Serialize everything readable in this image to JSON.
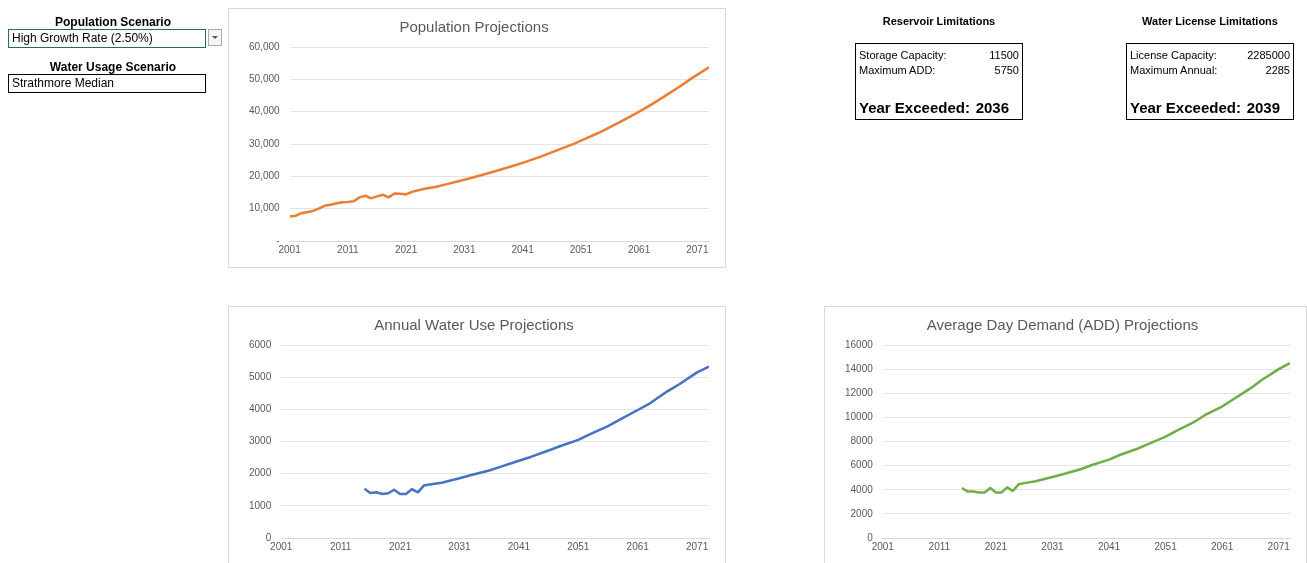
{
  "chart_data": [
    {
      "type": "other",
      "annotations": [
        "Population Scenario",
        "High Growth Rate (2.50%)",
        "Water Usage Scenario",
        "Strathmore Median"
      ]
    },
    {
      "type": "line",
      "title": "Population Projections",
      "grid": "y",
      "legend": false,
      "marker": "none",
      "x": [
        2001,
        2002,
        2003,
        2004,
        2005,
        2006,
        2007,
        2008,
        2009,
        2010,
        2011,
        2012,
        2013,
        2014,
        2015,
        2016,
        2017,
        2018,
        2019,
        2020,
        2021,
        2022,
        2024,
        2026,
        2028,
        2030,
        2032,
        2034,
        2036,
        2038,
        2040,
        2042,
        2044,
        2046,
        2048,
        2050,
        2052,
        2054,
        2056,
        2058,
        2060,
        2062,
        2064,
        2066,
        2068,
        2070,
        2073
      ],
      "series": [
        {
          "color": "#ed7d31",
          "values": [
            7600,
            7800,
            8600,
            8900,
            9300,
            10000,
            10900,
            11200,
            11600,
            12000,
            12100,
            12300,
            13500,
            14000,
            13200,
            13800,
            14300,
            13500,
            14700,
            14600,
            14400,
            15200,
            16100,
            16700,
            17600,
            18500,
            19400,
            20400,
            21400,
            22500,
            23600,
            24800,
            26000,
            27400,
            28800,
            30200,
            31800,
            33400,
            35200,
            37100,
            39000,
            41000,
            43200,
            45500,
            47800,
            50300,
            53700
          ]
        }
      ],
      "xlim": [
        2001,
        2073
      ],
      "xticks": [
        2001,
        2011,
        2021,
        2031,
        2041,
        2051,
        2061,
        2071
      ],
      "ylim": [
        0,
        60000
      ],
      "yticks": [
        {
          "value": 0,
          "label": "-"
        },
        {
          "value": 10000,
          "label": "10,000"
        },
        {
          "value": 20000,
          "label": "20,000"
        },
        {
          "value": 30000,
          "label": "30,000"
        },
        {
          "value": 40000,
          "label": "40,000"
        },
        {
          "value": 50000,
          "label": "50,000"
        },
        {
          "value": 60000,
          "label": "60,000"
        }
      ]
    },
    {
      "type": "other",
      "title": "Reservoir Limitations",
      "annotations": [
        "Storage Capacity:",
        "11500",
        "Maximum ADD:",
        "5750",
        "Year Exceeded:",
        "2036"
      ]
    },
    {
      "type": "other",
      "title": "Water License Limitations",
      "annotations": [
        "License Capacity:",
        "2285000",
        "Maximum Annual:",
        "2285",
        "Year Exceeded:",
        "2039"
      ]
    },
    {
      "type": "line",
      "title": "Annual Water Use Projections",
      "grid": "y",
      "legend": false,
      "marker": "none",
      "x": [
        2015,
        2016,
        2017,
        2018,
        2019,
        2020,
        2021,
        2022,
        2023,
        2024,
        2025,
        2026,
        2028,
        2031,
        2033,
        2036,
        2038,
        2041,
        2043,
        2046,
        2048,
        2051,
        2053,
        2056,
        2058,
        2061,
        2063,
        2066,
        2068,
        2071,
        2073
      ],
      "series": [
        {
          "color": "#4472c4",
          "values": [
            1530,
            1400,
            1420,
            1370,
            1390,
            1500,
            1370,
            1370,
            1520,
            1420,
            1630,
            1660,
            1720,
            1860,
            1960,
            2100,
            2220,
            2400,
            2520,
            2720,
            2860,
            3050,
            3230,
            3480,
            3680,
            3980,
            4180,
            4560,
            4780,
            5150,
            5330
          ]
        }
      ],
      "xlim": [
        2001,
        2073
      ],
      "xticks": [
        2001,
        2011,
        2021,
        2031,
        2041,
        2051,
        2061,
        2071
      ],
      "ylim": [
        0,
        6000
      ],
      "yticks": [
        0,
        1000,
        2000,
        3000,
        4000,
        5000,
        6000
      ]
    },
    {
      "type": "line",
      "title": "Average Day Demand (ADD) Projections",
      "grid": "y",
      "legend": false,
      "marker": "none",
      "x": [
        2015,
        2016,
        2017,
        2018,
        2019,
        2020,
        2021,
        2022,
        2023,
        2024,
        2025,
        2026,
        2028,
        2031,
        2033,
        2036,
        2038,
        2041,
        2043,
        2046,
        2048,
        2051,
        2053,
        2056,
        2058,
        2061,
        2063,
        2066,
        2068,
        2071,
        2073
      ],
      "series": [
        {
          "color": "#70ad47",
          "values": [
            4150,
            3850,
            3850,
            3780,
            3780,
            4150,
            3780,
            3780,
            4200,
            3900,
            4450,
            4550,
            4700,
            5050,
            5300,
            5700,
            6050,
            6500,
            6900,
            7400,
            7800,
            8400,
            8900,
            9600,
            10200,
            10900,
            11500,
            12400,
            13100,
            14000,
            14500
          ]
        }
      ],
      "xlim": [
        2001,
        2073
      ],
      "xticks": [
        2001,
        2011,
        2021,
        2031,
        2041,
        2051,
        2061,
        2071
      ],
      "ylim": [
        0,
        16000
      ],
      "yticks": [
        0,
        2000,
        4000,
        6000,
        8000,
        10000,
        12000,
        14000,
        16000
      ]
    }
  ]
}
